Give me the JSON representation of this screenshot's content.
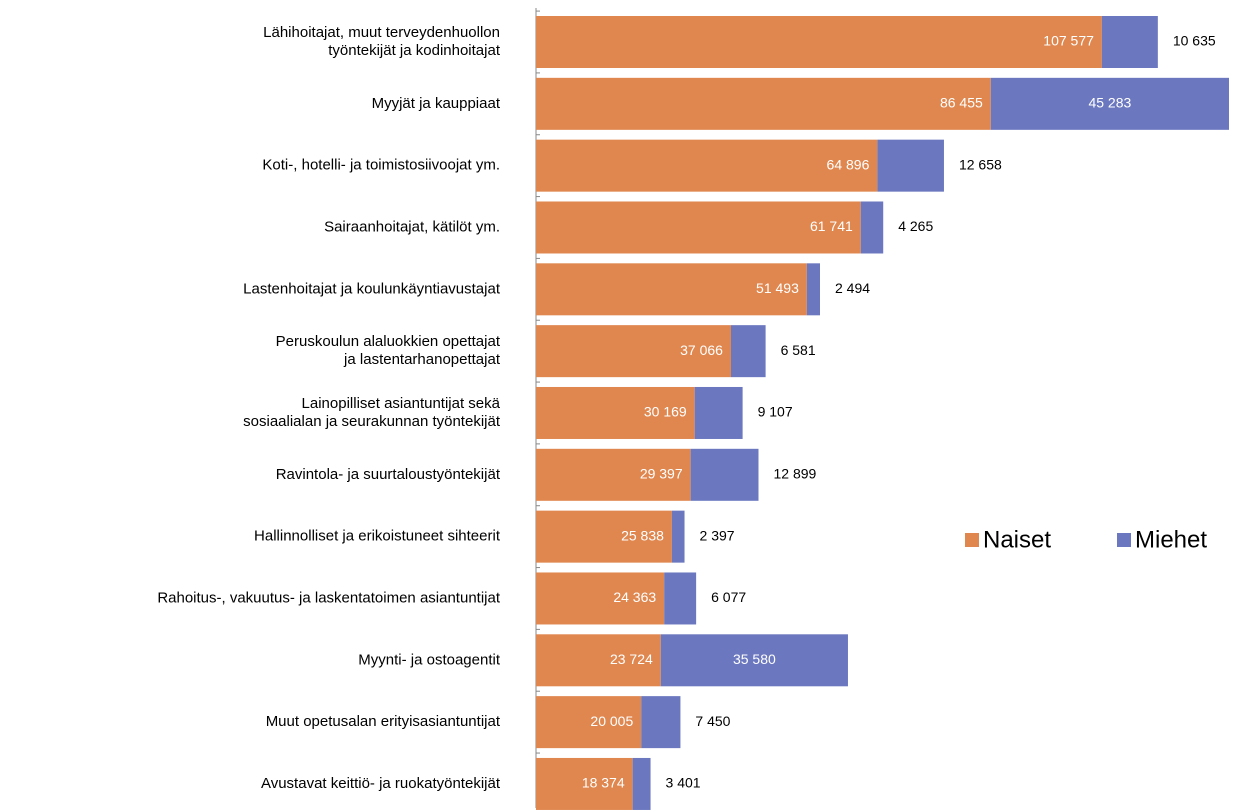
{
  "chart_data": {
    "type": "stacked-bar-horizontal",
    "categories": [
      "Lähihoitajat, muut terveydenhuollon\ntyöntekijät ja kodinhoitajat",
      "Myyjät ja kauppiaat",
      "Koti-, hotelli- ja toimistosiivoojat ym.",
      "Sairaanhoitajat, kätilöt ym.",
      "Lastenhoitajat ja koulunkäyntiavustajat",
      "Peruskoulun alaluokkien opettajat\nja lastentarhanopettajat",
      "Lainopilliset asiantuntijat sekä\nsosiaalialan ja seurakunnan työntekijät",
      "Ravintola- ja suurtaloustyöntekijät",
      "Hallinnolliset ja erikoistuneet sihteerit",
      "Rahoitus-, vakuutus- ja laskentatoimen asiantuntijat",
      "Myynti- ja ostoagentit",
      "Muut opetusalan erityisasiantuntijat",
      "Avustavat keittiö- ja ruokatyöntekijät"
    ],
    "series": [
      {
        "name": "Naiset",
        "color": "#e0874f",
        "values": [
          107577,
          86455,
          64896,
          61741,
          51493,
          37066,
          30169,
          29397,
          25838,
          24363,
          23724,
          20005,
          18374
        ],
        "value_labels": [
          "107 577",
          "86 455",
          "64 896",
          "61 741",
          "51 493",
          "37 066",
          "30 169",
          "29 397",
          "25 838",
          "24 363",
          "23 724",
          "20 005",
          "18 374"
        ]
      },
      {
        "name": "Miehet",
        "color": "#6b78bf",
        "values": [
          10635,
          45283,
          12658,
          4265,
          2494,
          6581,
          9107,
          12899,
          2397,
          6077,
          35580,
          7450,
          3401
        ],
        "value_labels": [
          "10 635",
          "45 283",
          "12 658",
          "4 265",
          "2 494",
          "6 581",
          "9 107",
          "12 899",
          "2 397",
          "6 077",
          "35 580",
          "7 450",
          "3 401"
        ]
      }
    ],
    "legend": "right"
  }
}
